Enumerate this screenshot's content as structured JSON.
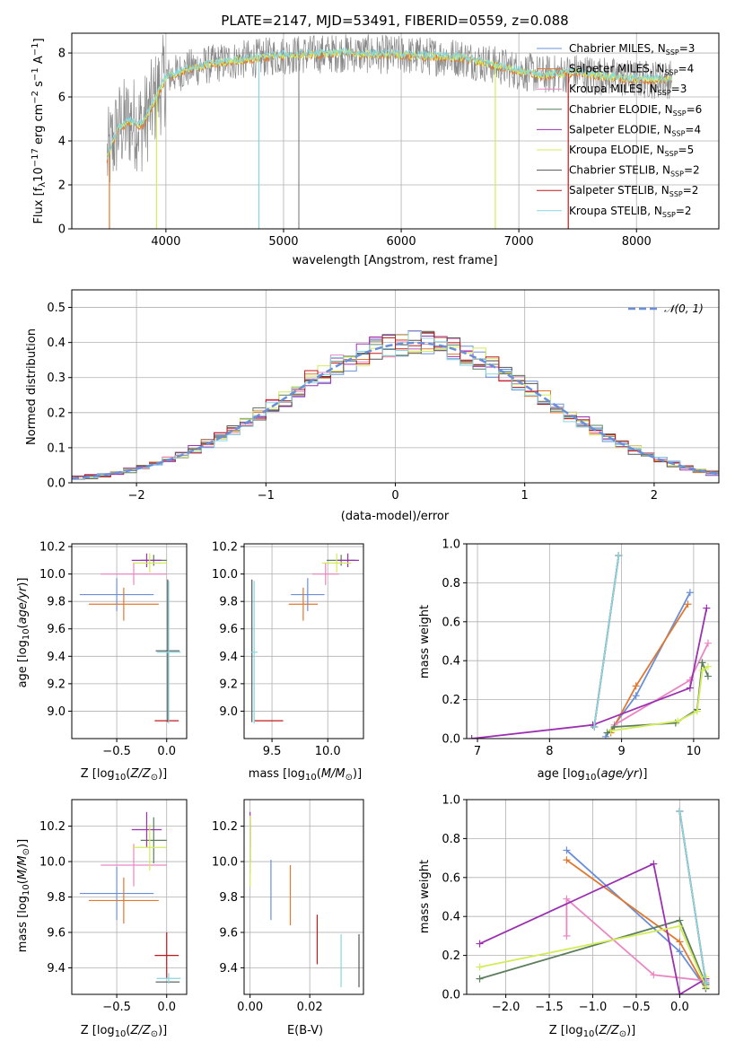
{
  "figure_title": "PLATE=2147, MJD=53491, FIBERID=0559, z=0.088",
  "colors": {
    "Chabrier MILES": "#6a8fd8",
    "Salpeter MILES": "#e07830",
    "Kroupa MILES": "#e987c3",
    "Chabrier ELODIE": "#5c7e5c",
    "Salpeter ELODIE": "#9b30b0",
    "Kroupa ELODIE": "#d3ec5a",
    "Chabrier STELIB": "#555555",
    "Salpeter STELIB": "#c01818",
    "Kroupa STELIB": "#86d8e0"
  },
  "chart_data": [
    {
      "id": "spectrum",
      "type": "line",
      "xlabel": "wavelength [Angstrom, rest frame]",
      "ylabel": "Flux [f_λ 10^-17 erg cm^-2 s^-1 A^-1]",
      "xlim": [
        3200,
        8700
      ],
      "ylim": [
        0,
        8.9
      ],
      "xticks": [
        4000,
        5000,
        6000,
        7000,
        8000
      ],
      "yticks": [
        0,
        2,
        4,
        6,
        8
      ],
      "continuum": {
        "x": [
          3500,
          3560,
          3600,
          3700,
          3800,
          3900,
          4000,
          4200,
          4500,
          5000,
          5500,
          6000,
          6500,
          7000,
          7200,
          7500,
          7800,
          8000
        ],
        "y": [
          3.2,
          4.1,
          4.6,
          4.9,
          4.7,
          5.8,
          6.9,
          7.3,
          7.6,
          7.9,
          8.0,
          7.9,
          7.8,
          7.2,
          7.0,
          7.1,
          6.9,
          6.8
        ]
      },
      "legend": [
        {
          "model": "Chabrier MILES",
          "nssp": "3"
        },
        {
          "model": "Salpeter MILES",
          "nssp": "4"
        },
        {
          "model": "Kroupa MILES",
          "nssp": "3"
        },
        {
          "model": "Chabrier ELODIE",
          "nssp": "6"
        },
        {
          "model": "Salpeter ELODIE",
          "nssp": "4"
        },
        {
          "model": "Kroupa ELODIE",
          "nssp": "5"
        },
        {
          "model": "Chabrier STELIB",
          "nssp": "2"
        },
        {
          "model": "Salpeter STELIB",
          "nssp": "2"
        },
        {
          "model": "Kroupa STELIB",
          "nssp": "2"
        }
      ]
    },
    {
      "id": "residuals",
      "type": "area",
      "xlabel": "(data-model)/error",
      "ylabel": "Normed distribution",
      "xlim": [
        -2.5,
        2.5
      ],
      "ylim": [
        0,
        0.55
      ],
      "xticks": [
        -2,
        -1,
        0,
        1,
        2
      ],
      "yticks": [
        0.0,
        0.1,
        0.2,
        0.3,
        0.4,
        0.5
      ],
      "gaussian_label": "𝒩(0, 1)",
      "gaussian_mean": 0.15,
      "bin_width": 0.1
    },
    {
      "id": "age-vs-Z",
      "type": "scatter",
      "xlabel": "Z [log10(Z/Z⊙)]",
      "ylabel": "age [log10(age/yr)]",
      "xlim": [
        -0.95,
        0.2
      ],
      "ylim": [
        8.8,
        10.22
      ],
      "xticks": [
        -0.5,
        0.0
      ],
      "yticks": [
        9.0,
        9.2,
        9.4,
        9.6,
        9.8,
        10.0,
        10.2
      ],
      "points": [
        {
          "model": "Chabrier MILES",
          "x": -0.5,
          "xerr": 0.37,
          "y": 9.85,
          "yerr": 0.12
        },
        {
          "model": "Salpeter MILES",
          "x": -0.43,
          "xerr": 0.35,
          "y": 9.78,
          "yerr": 0.12
        },
        {
          "model": "Kroupa MILES",
          "x": -0.33,
          "xerr": 0.33,
          "y": 10.0,
          "yerr": 0.08
        },
        {
          "model": "Chabrier ELODIE",
          "x": -0.13,
          "xerr": 0.13,
          "y": 10.1,
          "yerr": 0.04
        },
        {
          "model": "Salpeter ELODIE",
          "x": -0.2,
          "xerr": 0.15,
          "y": 10.1,
          "yerr": 0.05
        },
        {
          "model": "Kroupa ELODIE",
          "x": -0.17,
          "xerr": 0.17,
          "y": 10.08,
          "yerr": 0.07
        },
        {
          "model": "Chabrier STELIB",
          "x": 0.01,
          "xerr": 0.12,
          "y": 9.44,
          "yerr": 0.52
        },
        {
          "model": "Salpeter STELIB",
          "x": 0.0,
          "xerr": 0.12,
          "y": 8.93,
          "yerr": 0.0
        },
        {
          "model": "Kroupa STELIB",
          "x": 0.02,
          "xerr": 0.12,
          "y": 9.43,
          "yerr": 0.52
        }
      ]
    },
    {
      "id": "age-vs-mass",
      "type": "scatter",
      "xlabel": "mass [log10(M/M⊙)]",
      "ylabel": "",
      "xlim": [
        9.25,
        10.32
      ],
      "ylim": [
        8.8,
        10.22
      ],
      "xticks": [
        9.5,
        10.0
      ],
      "yticks": [
        9.0,
        9.2,
        9.4,
        9.6,
        9.8,
        10.0,
        10.2
      ],
      "points": [
        {
          "model": "Chabrier MILES",
          "x": 9.82,
          "xerr": 0.15,
          "y": 9.85,
          "yerr": 0.12
        },
        {
          "model": "Salpeter MILES",
          "x": 9.78,
          "xerr": 0.13,
          "y": 9.78,
          "yerr": 0.12
        },
        {
          "model": "Kroupa MILES",
          "x": 9.98,
          "xerr": 0.12,
          "y": 10.0,
          "yerr": 0.08
        },
        {
          "model": "Chabrier ELODIE",
          "x": 10.12,
          "xerr": 0.13,
          "y": 10.1,
          "yerr": 0.04
        },
        {
          "model": "Salpeter ELODIE",
          "x": 10.18,
          "xerr": 0.1,
          "y": 10.1,
          "yerr": 0.05
        },
        {
          "model": "Kroupa ELODIE",
          "x": 10.08,
          "xerr": 0.13,
          "y": 10.08,
          "yerr": 0.07
        },
        {
          "model": "Chabrier STELIB",
          "x": 9.32,
          "xerr": 0.0,
          "y": 9.44,
          "yerr": 0.52
        },
        {
          "model": "Salpeter STELIB",
          "x": 9.47,
          "xerr": 0.13,
          "y": 8.93,
          "yerr": 0.0
        },
        {
          "model": "Kroupa STELIB",
          "x": 9.34,
          "xerr": 0.03,
          "y": 9.43,
          "yerr": 0.52
        }
      ]
    },
    {
      "id": "weight-vs-age",
      "type": "line",
      "xlabel": "age [log10(age/yr)]",
      "ylabel": "mass weight",
      "xlim": [
        6.85,
        10.35
      ],
      "ylim": [
        0,
        1.0
      ],
      "xticks": [
        7,
        8,
        9,
        10
      ],
      "yticks": [
        0.0,
        0.2,
        0.4,
        0.6,
        0.8,
        1.0
      ],
      "series": [
        {
          "model": "Chabrier MILES",
          "x": [
            8.78,
            9.2,
            9.95
          ],
          "y": [
            0.01,
            0.22,
            0.75
          ]
        },
        {
          "model": "Salpeter MILES",
          "x": [
            8.85,
            9.2,
            9.92
          ],
          "y": [
            0.03,
            0.27,
            0.69
          ]
        },
        {
          "model": "Kroupa MILES",
          "x": [
            8.9,
            9.95,
            10.2
          ],
          "y": [
            0.07,
            0.3,
            0.49
          ]
        },
        {
          "model": "Chabrier ELODIE",
          "x": [
            8.8,
            8.9,
            9.75,
            10.05,
            10.12,
            10.2
          ],
          "y": [
            0.03,
            0.06,
            0.08,
            0.15,
            0.39,
            0.32
          ]
        },
        {
          "model": "Salpeter ELODIE",
          "x": [
            6.92,
            8.6,
            9.95,
            10.18
          ],
          "y": [
            0.0,
            0.07,
            0.26,
            0.67
          ]
        },
        {
          "model": "Kroupa ELODIE",
          "x": [
            8.85,
            9.78,
            10.05,
            10.12,
            10.2
          ],
          "y": [
            0.04,
            0.09,
            0.14,
            0.35,
            0.37
          ]
        },
        {
          "model": "Chabrier STELIB",
          "x": [
            8.62,
            8.96
          ],
          "y": [
            0.06,
            0.94
          ]
        },
        {
          "model": "Salpeter STELIB",
          "x": [
            8.62,
            8.96
          ],
          "y": [
            0.06,
            0.94
          ]
        },
        {
          "model": "Kroupa STELIB",
          "x": [
            8.62,
            8.96
          ],
          "y": [
            0.06,
            0.94
          ]
        }
      ]
    },
    {
      "id": "mass-vs-Z",
      "type": "scatter",
      "xlabel": "Z [log10(Z/Z⊙)]",
      "ylabel": "mass [log10(M/M⊙)]",
      "xlim": [
        -0.95,
        0.2
      ],
      "ylim": [
        9.25,
        10.35
      ],
      "xticks": [
        -0.5,
        0.0
      ],
      "yticks": [
        9.4,
        9.6,
        9.8,
        10.0,
        10.2
      ],
      "points": [
        {
          "model": "Chabrier MILES",
          "x": -0.5,
          "xerr": 0.37,
          "y": 9.82,
          "yerr": 0.15
        },
        {
          "model": "Salpeter MILES",
          "x": -0.43,
          "xerr": 0.35,
          "y": 9.78,
          "yerr": 0.13
        },
        {
          "model": "Kroupa MILES",
          "x": -0.33,
          "xerr": 0.33,
          "y": 9.98,
          "yerr": 0.12
        },
        {
          "model": "Chabrier ELODIE",
          "x": -0.13,
          "xerr": 0.13,
          "y": 10.12,
          "yerr": 0.13
        },
        {
          "model": "Salpeter ELODIE",
          "x": -0.2,
          "xerr": 0.15,
          "y": 10.18,
          "yerr": 0.1
        },
        {
          "model": "Kroupa ELODIE",
          "x": -0.17,
          "xerr": 0.17,
          "y": 10.08,
          "yerr": 0.13
        },
        {
          "model": "Chabrier STELIB",
          "x": 0.01,
          "xerr": 0.12,
          "y": 9.32,
          "yerr": 0.0
        },
        {
          "model": "Salpeter STELIB",
          "x": 0.0,
          "xerr": 0.12,
          "y": 9.47,
          "yerr": 0.13
        },
        {
          "model": "Kroupa STELIB",
          "x": 0.02,
          "xerr": 0.12,
          "y": 9.34,
          "yerr": 0.03
        }
      ]
    },
    {
      "id": "mass-vs-EBV",
      "type": "scatter",
      "xlabel": "E(B-V)",
      "ylabel": "",
      "xlim": [
        -0.002,
        0.038
      ],
      "ylim": [
        9.25,
        10.35
      ],
      "xticks": [
        0.0,
        0.02
      ],
      "yticks": [
        9.4,
        9.6,
        9.8,
        10.0,
        10.2
      ],
      "points": [
        {
          "model": "Chabrier MILES",
          "x": 0.007,
          "y": 9.84,
          "yerr": 0.17
        },
        {
          "model": "Salpeter MILES",
          "x": 0.0135,
          "y": 9.81,
          "yerr": 0.17
        },
        {
          "model": "Kroupa MILES",
          "x": 0.0,
          "y": 10.08,
          "yerr": 0.15
        },
        {
          "model": "Chabrier ELODIE",
          "x": 0.0,
          "y": 10.1,
          "yerr": 0.1
        },
        {
          "model": "Salpeter ELODIE",
          "x": 0.0,
          "y": 10.18,
          "yerr": 0.1
        },
        {
          "model": "Kroupa ELODIE",
          "x": 0.0,
          "y": 10.06,
          "yerr": 0.2
        },
        {
          "model": "Chabrier STELIB",
          "x": 0.0365,
          "y": 9.44,
          "yerr": 0.15
        },
        {
          "model": "Salpeter STELIB",
          "x": 0.0225,
          "y": 9.56,
          "yerr": 0.14
        },
        {
          "model": "Kroupa STELIB",
          "x": 0.0305,
          "y": 9.44,
          "yerr": 0.15
        }
      ]
    },
    {
      "id": "weight-vs-Z",
      "type": "line",
      "xlabel": "Z [log10(Z/Z⊙)]",
      "ylabel": "mass weight",
      "xlim": [
        -2.45,
        0.45
      ],
      "ylim": [
        0,
        1.0
      ],
      "xticks": [
        -2.0,
        -1.5,
        -1.0,
        -0.5,
        0.0
      ],
      "yticks": [
        0.0,
        0.2,
        0.4,
        0.6,
        0.8,
        1.0
      ],
      "series": [
        {
          "model": "Chabrier MILES",
          "x": [
            -1.3,
            0.0,
            0.3
          ],
          "y": [
            0.74,
            0.22,
            0.03
          ]
        },
        {
          "model": "Salpeter MILES",
          "x": [
            -1.3,
            0.0,
            0.3
          ],
          "y": [
            0.69,
            0.27,
            0.03
          ]
        },
        {
          "model": "Kroupa MILES",
          "x": [
            -1.3,
            -1.3,
            -0.3,
            0.3,
            0.3
          ],
          "y": [
            0.3,
            0.49,
            0.1,
            0.07,
            0.05
          ]
        },
        {
          "model": "Chabrier ELODIE",
          "x": [
            -2.3,
            0.0,
            0.3,
            0.3
          ],
          "y": [
            0.08,
            0.38,
            0.05,
            0.03
          ]
        },
        {
          "model": "Salpeter ELODIE",
          "x": [
            -2.3,
            -0.3,
            0.0,
            0.3
          ],
          "y": [
            0.26,
            0.67,
            0.0,
            0.08
          ]
        },
        {
          "model": "Kroupa ELODIE",
          "x": [
            -2.3,
            0.0,
            0.3,
            0.3
          ],
          "y": [
            0.14,
            0.35,
            0.04,
            0.09
          ]
        },
        {
          "model": "Chabrier STELIB",
          "x": [
            0.0,
            0.3
          ],
          "y": [
            0.94,
            0.06
          ]
        },
        {
          "model": "Salpeter STELIB",
          "x": [
            0.0,
            0.3
          ],
          "y": [
            0.94,
            0.06
          ]
        },
        {
          "model": "Kroupa STELIB",
          "x": [
            0.0,
            0.3
          ],
          "y": [
            0.94,
            0.06
          ]
        }
      ]
    }
  ]
}
